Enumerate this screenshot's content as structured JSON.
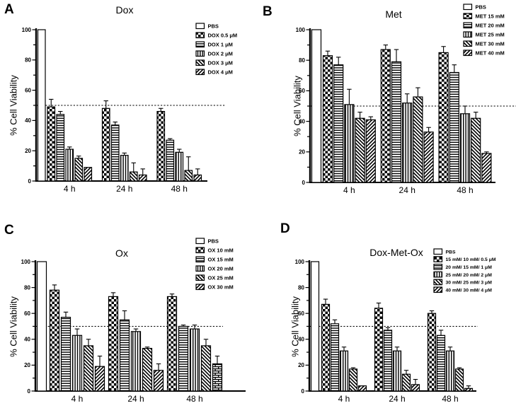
{
  "figure": {
    "background": "#ffffff",
    "ink_color": "#000000",
    "y_axis_label": "% Cell Viability",
    "x_tick_labels": [
      "4 h",
      "24 h",
      "48 h"
    ],
    "y_ticks": [
      0,
      20,
      40,
      60,
      80,
      100
    ],
    "reference_line_value": 50
  },
  "chart_data": [
    {
      "panel": "A",
      "type": "bar",
      "title": "Dox",
      "ylabel": "% Cell Viability",
      "ylim": [
        0,
        100
      ],
      "yticks": [
        0,
        20,
        40,
        60,
        80,
        100
      ],
      "categories": [
        "4 h",
        "24 h",
        "48 h"
      ],
      "reference_line": 50,
      "control": {
        "label": "PBS",
        "pattern": "open",
        "value": 100,
        "error": 0
      },
      "series": [
        {
          "name": "DOX 0.5 μM",
          "pattern": "checker",
          "values": [
            49,
            48,
            46
          ],
          "errors": [
            5,
            5,
            2
          ]
        },
        {
          "name": "DOX 1 μM",
          "pattern": "hlines",
          "values": [
            44,
            37,
            27
          ],
          "errors": [
            2,
            2,
            1
          ]
        },
        {
          "name": "DOX 2 μM",
          "pattern": "vlines",
          "values": [
            21,
            17,
            19
          ],
          "errors": [
            1.5,
            1.5,
            2
          ]
        },
        {
          "name": "DOX 3 μM",
          "pattern": "diagB",
          "values": [
            15,
            6,
            7
          ],
          "errors": [
            1.5,
            6,
            9
          ]
        },
        {
          "name": "DOX 4 μM",
          "pattern": "diagF",
          "values": [
            9,
            4,
            4
          ],
          "errors": [
            0.5,
            4,
            4
          ]
        }
      ]
    },
    {
      "panel": "B",
      "type": "bar",
      "title": "Met",
      "ylabel": "% Cell Viability",
      "ylim": [
        0,
        100
      ],
      "yticks": [
        0,
        20,
        40,
        60,
        80,
        100
      ],
      "categories": [
        "4 h",
        "24 h",
        "48 h"
      ],
      "reference_line": 50,
      "control": {
        "label": "PBS",
        "pattern": "open",
        "value": 100,
        "error": 0
      },
      "series": [
        {
          "name": "MET 15 mM",
          "pattern": "checker",
          "values": [
            83,
            87,
            85
          ],
          "errors": [
            3,
            3,
            4
          ]
        },
        {
          "name": "MET 20 mM",
          "pattern": "hlines",
          "values": [
            77,
            79,
            72
          ],
          "errors": [
            5,
            8,
            5
          ]
        },
        {
          "name": "MET 25 mM",
          "pattern": "vlines",
          "values": [
            51,
            52,
            45
          ],
          "errors": [
            10,
            6,
            5
          ]
        },
        {
          "name": "MET 30 mM",
          "pattern": "diagB",
          "values": [
            42,
            56,
            42
          ],
          "errors": [
            4,
            6,
            4
          ]
        },
        {
          "name": "MET 40 mM",
          "pattern": "diagF",
          "values": [
            41,
            33,
            19
          ],
          "errors": [
            2,
            3,
            1
          ]
        }
      ]
    },
    {
      "panel": "C",
      "type": "bar",
      "title": "Ox",
      "ylabel": "% Cell Viability",
      "ylim": [
        0,
        100
      ],
      "yticks": [
        0,
        20,
        40,
        60,
        80,
        100
      ],
      "categories": [
        "4 h",
        "24 h",
        "48 h"
      ],
      "reference_line": 50,
      "control": {
        "label": "PBS",
        "pattern": "open",
        "value": 100,
        "error": 0
      },
      "series": [
        {
          "name": "OX 10 mM",
          "pattern": "checker",
          "values": [
            78,
            73,
            73
          ],
          "errors": [
            4,
            3,
            2
          ]
        },
        {
          "name": "OX 15 mM",
          "pattern": "hlines",
          "values": [
            57,
            55,
            50
          ],
          "errors": [
            4,
            7,
            1
          ]
        },
        {
          "name": "OX 20 mM",
          "pattern": "vlines",
          "values": [
            43,
            46,
            48
          ],
          "errors": [
            5,
            2,
            3
          ]
        },
        {
          "name": "OX 25 mM",
          "pattern": "diagB",
          "values": [
            35,
            33,
            35
          ],
          "errors": [
            5,
            1,
            5
          ]
        },
        {
          "name": "OX 30 mM",
          "pattern": "diagF",
          "values": [
            19,
            16,
            21
          ],
          "errors": [
            8,
            5,
            6
          ]
        }
      ],
      "pattern_overrides": [
        {
          "series_index": 4,
          "category_index": 2,
          "pattern": "brick"
        }
      ]
    },
    {
      "panel": "D",
      "type": "bar",
      "title": "Dox-Met-Ox",
      "ylabel": "% Cell Viability",
      "ylim": [
        0,
        100
      ],
      "yticks": [
        0,
        20,
        40,
        60,
        80,
        100
      ],
      "categories": [
        "4 h",
        "24 h",
        "48 h"
      ],
      "reference_line": 50,
      "control": {
        "label": "PBS",
        "pattern": "open",
        "value": 100,
        "error": 0
      },
      "series": [
        {
          "name": "15 mM/ 10 mM/ 0.5 μM",
          "pattern": "checker",
          "values": [
            67,
            64,
            60
          ],
          "errors": [
            4,
            4,
            2
          ]
        },
        {
          "name": "20 mM/ 15 mM/ 1 μM",
          "pattern": "hlines",
          "values": [
            52,
            47,
            43
          ],
          "errors": [
            3,
            2,
            4
          ]
        },
        {
          "name": "25 mM/ 20 mM/ 2 μM",
          "pattern": "vlines",
          "values": [
            31,
            31,
            31
          ],
          "errors": [
            3,
            3,
            3
          ]
        },
        {
          "name": "30 mM/ 25 mM/ 3 μM",
          "pattern": "diagB",
          "values": [
            17,
            13,
            17
          ],
          "errors": [
            1,
            3,
            1
          ]
        },
        {
          "name": "40 mM/ 30 mM/ 4 μM",
          "pattern": "diagF",
          "values": [
            4,
            5,
            2
          ],
          "errors": [
            0.5,
            4,
            2
          ]
        }
      ]
    }
  ]
}
